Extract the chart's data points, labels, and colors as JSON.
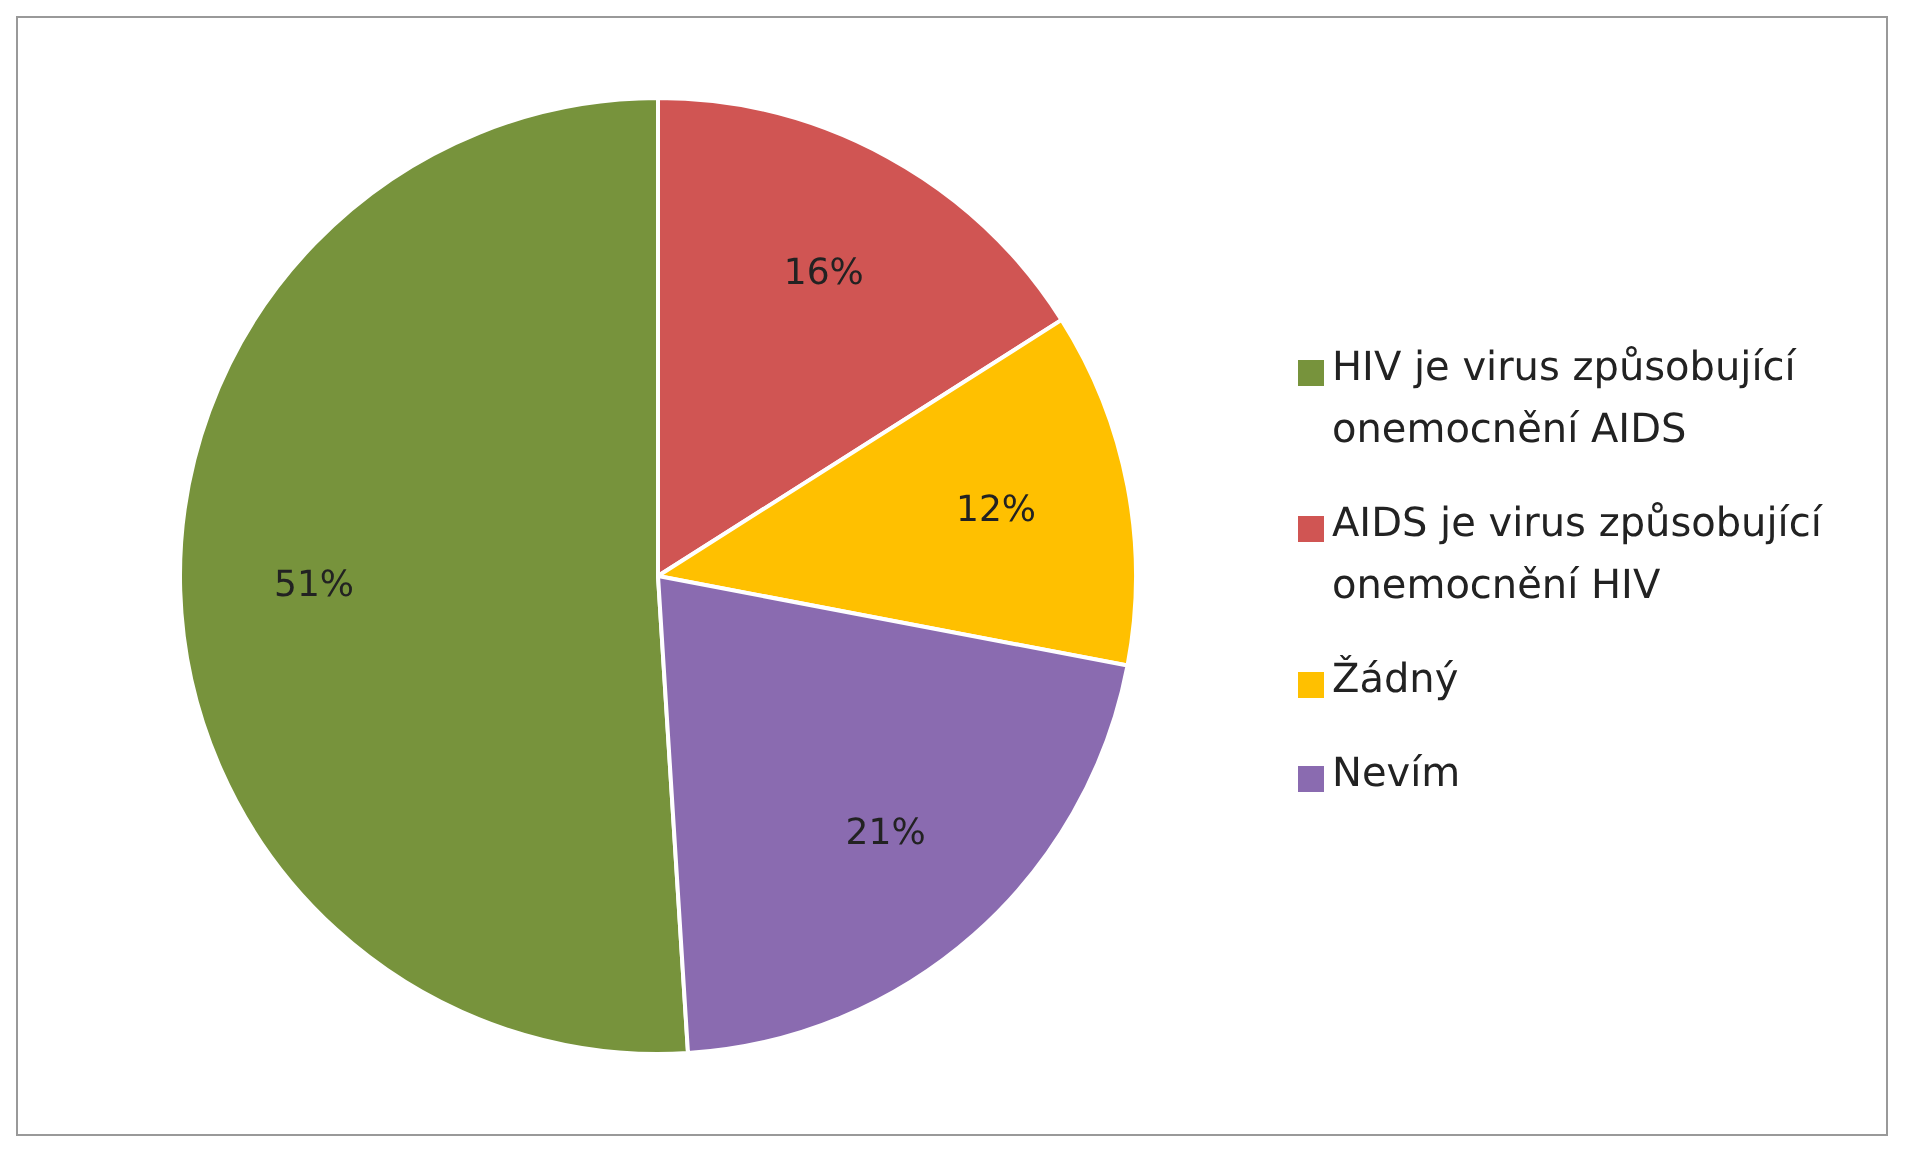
{
  "chart_data": {
    "type": "pie",
    "categories": [
      "HIV je virus způsobující onemocnění AIDS",
      "AIDS je virus způsobující onemocnění HIV",
      "Žádný",
      "Nevím"
    ],
    "values": [
      51,
      16,
      12,
      21
    ],
    "colors": [
      "#77933c",
      "#d05553",
      "#ffc000",
      "#8a6bb0"
    ],
    "value_labels": [
      "51%",
      "16%",
      "12%",
      "21%"
    ],
    "legend": "right"
  }
}
